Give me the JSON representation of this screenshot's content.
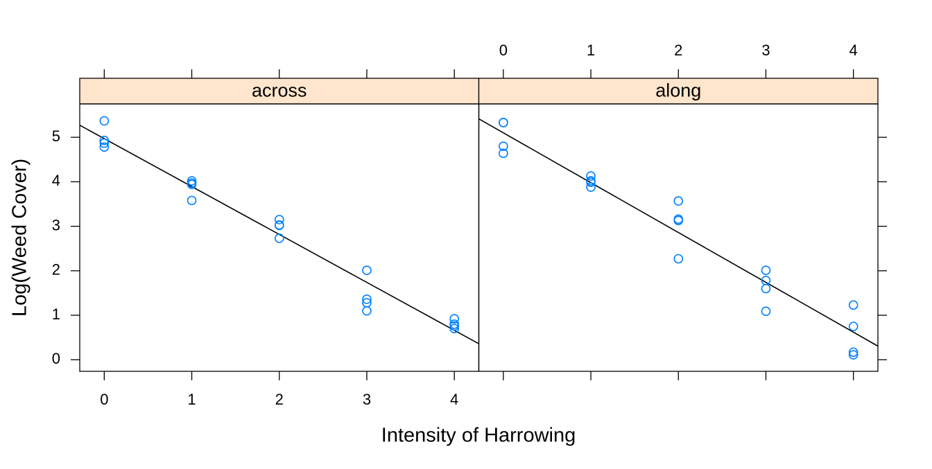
{
  "chart_data": {
    "type": "scatter",
    "xlabel": "Intensity of Harrowing",
    "ylabel": "Log(Weed Cover)",
    "xlim": [
      -0.28,
      4.28
    ],
    "ylim": [
      -0.26,
      5.75
    ],
    "xticks": [
      0,
      1,
      2,
      3,
      4
    ],
    "yticks": [
      0,
      1,
      2,
      3,
      4,
      5
    ],
    "color": "#0080ff",
    "strip_color": "#ffe5cc",
    "line_color": "#000000",
    "panels": [
      {
        "name": "across",
        "x": [
          0,
          0,
          0,
          0,
          1,
          1,
          1,
          1,
          2,
          2,
          2,
          2,
          3,
          3,
          3,
          3,
          4,
          4,
          4,
          4
        ],
        "values": [
          5.37,
          4.93,
          4.87,
          4.78,
          4.02,
          3.97,
          3.94,
          3.58,
          3.15,
          3.03,
          3.02,
          2.73,
          2.01,
          1.36,
          1.28,
          1.1,
          0.92,
          0.8,
          0.76,
          0.7
        ],
        "fit": {
          "intercept": 4.97,
          "slope": -1.077
        }
      },
      {
        "name": "along",
        "x": [
          0,
          0,
          0,
          0,
          1,
          1,
          1,
          1,
          2,
          2,
          2,
          2,
          3,
          3,
          3,
          3,
          4,
          4,
          4,
          4
        ],
        "values": [
          5.33,
          5.33,
          4.8,
          4.64,
          4.13,
          4.02,
          3.99,
          3.88,
          3.57,
          3.16,
          3.13,
          2.27,
          2.01,
          1.78,
          1.6,
          1.09,
          1.23,
          0.75,
          0.17,
          0.11
        ],
        "fit": {
          "intercept": 5.1,
          "slope": -1.12
        }
      }
    ]
  }
}
